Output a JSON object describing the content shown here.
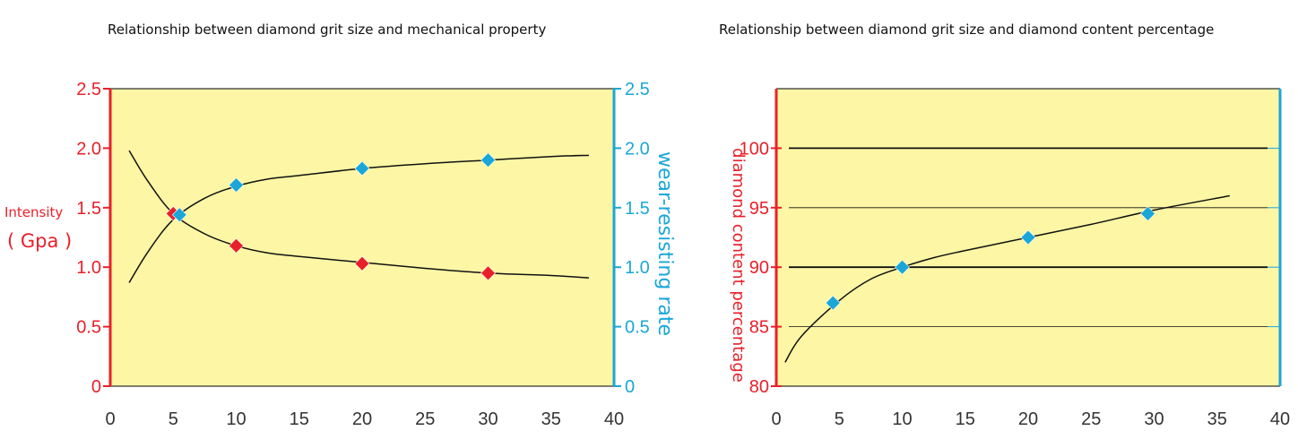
{
  "chart_data": [
    {
      "type": "line",
      "title": "Relationship between diamond grit size and mechanical property",
      "xlim": [
        0,
        40
      ],
      "x_ticks": [
        "0",
        "5",
        "10",
        "15",
        "20",
        "25",
        "30",
        "35",
        "40"
      ],
      "y_left": {
        "label_line1": "Intensity",
        "label_line2": "( Gpa )",
        "ylim": [
          0,
          2.5
        ],
        "ticks": [
          "0",
          "0.5",
          "1.0",
          "1.5",
          "2.0",
          "2.5"
        ],
        "color": "#e8202a"
      },
      "y_right": {
        "label": "wear-resisting rate",
        "ylim": [
          0,
          2.5
        ],
        "ticks": [
          "0",
          "0.5",
          "1.0",
          "1.5",
          "2.0",
          "2.5"
        ],
        "color": "#1aa7d8"
      },
      "series": [
        {
          "axis": "left",
          "marker_color": "#e8202a",
          "curve": [
            [
              1.5,
              1.98
            ],
            [
              3,
              1.72
            ],
            [
              5,
              1.45
            ],
            [
              7.5,
              1.28
            ],
            [
              10,
              1.18
            ],
            [
              12.5,
              1.12
            ],
            [
              15,
              1.09
            ],
            [
              20,
              1.04
            ],
            [
              25,
              0.99
            ],
            [
              30,
              0.95
            ],
            [
              35,
              0.93
            ],
            [
              38,
              0.91
            ]
          ],
          "markers": [
            [
              5,
              1.45
            ],
            [
              10,
              1.18
            ],
            [
              20,
              1.03
            ],
            [
              30,
              0.95
            ]
          ]
        },
        {
          "axis": "right",
          "marker_color": "#1aa7d8",
          "curve": [
            [
              1.5,
              0.87
            ],
            [
              3,
              1.13
            ],
            [
              5,
              1.4
            ],
            [
              7.5,
              1.58
            ],
            [
              10,
              1.68
            ],
            [
              12.5,
              1.74
            ],
            [
              15,
              1.77
            ],
            [
              20,
              1.83
            ],
            [
              25,
              1.87
            ],
            [
              30,
              1.9
            ],
            [
              35,
              1.93
            ],
            [
              38,
              1.94
            ]
          ],
          "markers": [
            [
              5.5,
              1.44
            ],
            [
              10,
              1.69
            ],
            [
              20,
              1.83
            ],
            [
              30,
              1.9
            ]
          ]
        }
      ]
    },
    {
      "type": "line",
      "title": "Relationship between diamond grit size and diamond content percentage",
      "xlim": [
        0,
        40
      ],
      "x_ticks": [
        "0",
        "5",
        "10",
        "15",
        "20",
        "25",
        "30",
        "35",
        "40"
      ],
      "y_left": {
        "label": "diamond content percentage",
        "ylim": [
          80,
          105
        ],
        "ticks": [
          "80",
          "85",
          "90",
          "95",
          "100"
        ],
        "color": "#e8202a"
      },
      "gridlines": [
        85,
        90,
        95,
        100
      ],
      "series": [
        {
          "marker_color": "#1aa7d8",
          "curve": [
            [
              0.7,
              82
            ],
            [
              2,
              84.2
            ],
            [
              5,
              87.2
            ],
            [
              7.5,
              89
            ],
            [
              10,
              90
            ],
            [
              12.5,
              90.8
            ],
            [
              15,
              91.4
            ],
            [
              20,
              92.5
            ],
            [
              25,
              93.6
            ],
            [
              30,
              94.8
            ],
            [
              36,
              96
            ]
          ],
          "markers": [
            [
              4.5,
              87
            ],
            [
              10,
              90
            ],
            [
              20,
              92.5
            ],
            [
              29.5,
              94.5
            ]
          ]
        }
      ]
    }
  ]
}
